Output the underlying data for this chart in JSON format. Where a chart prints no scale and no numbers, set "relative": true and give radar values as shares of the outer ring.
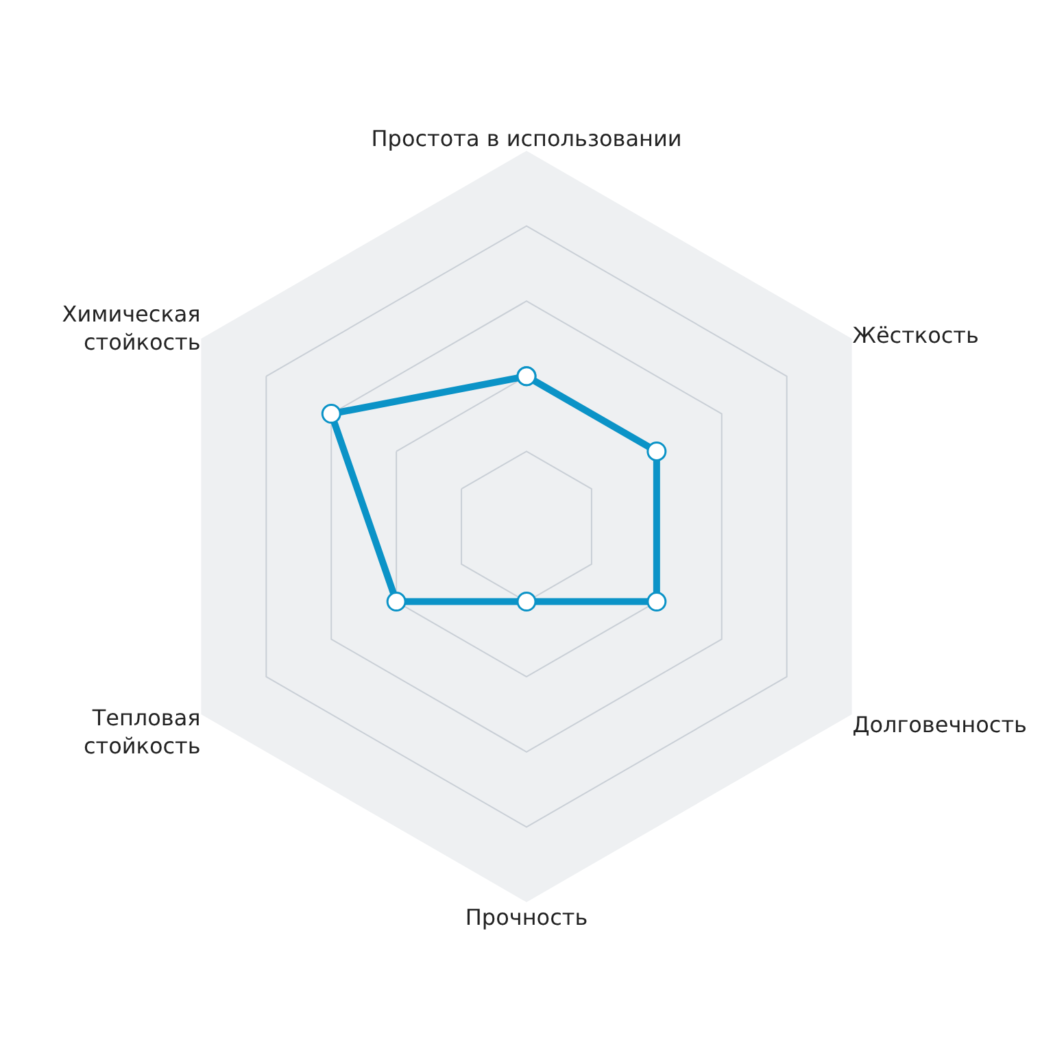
{
  "chart_data": {
    "type": "radar",
    "relative": true,
    "grid": true,
    "marker": "circle",
    "categories": [
      "Простота в использовании",
      "Жёсткость",
      "Долговечность",
      "Прочность",
      "Тепловая\nстойкость",
      "Химическая\nстойкость"
    ],
    "series": [
      {
        "color": "#0b93c7",
        "values": [
          0.4,
          0.4,
          0.4,
          0.2,
          0.4,
          0.6
        ]
      }
    ]
  }
}
